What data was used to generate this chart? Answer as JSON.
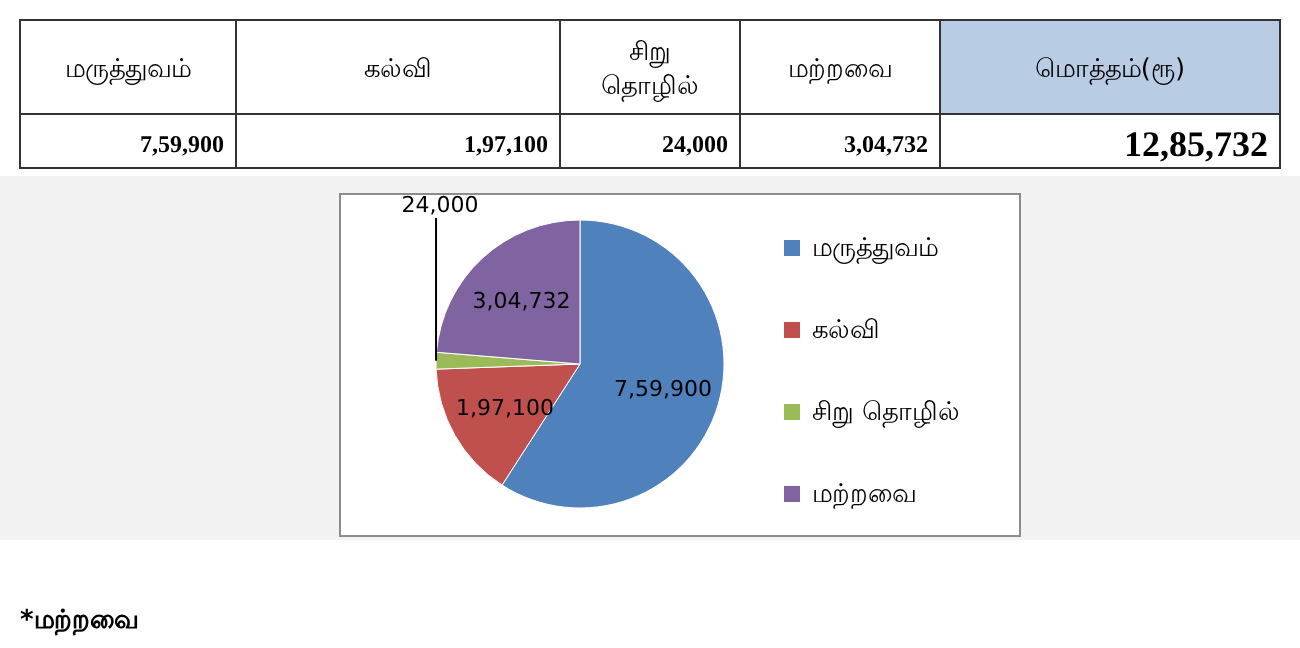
{
  "chart_data": {
    "type": "pie",
    "categories": [
      "மருத்துவம்",
      "கல்வி",
      "சிறு தொழில்",
      "மற்றவை"
    ],
    "values": [
      759900,
      197100,
      24000,
      304732
    ],
    "value_labels": [
      "7,59,900",
      "1,97,100",
      "24,000",
      "3,04,732"
    ],
    "colors": [
      "#4f81bd",
      "#c0504d",
      "#9bbb59",
      "#8064a2"
    ],
    "legend": "right",
    "annotations": [
      "மொத்தம்(ரூ)",
      "12,85,732",
      "*மற்றவை"
    ]
  }
}
